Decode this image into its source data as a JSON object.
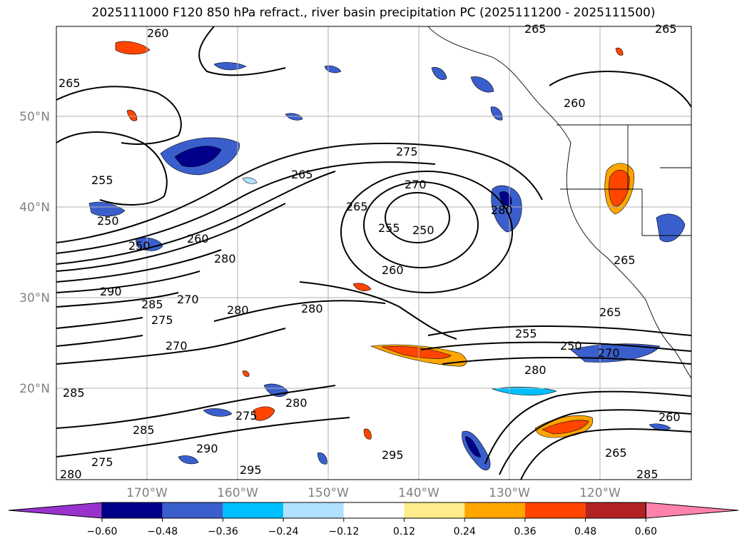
{
  "title": "2025111000 F120 850 hPa refract., river basin precipitation PC (2025111200 - 2025111500)",
  "lat_labels": [
    "50°N",
    "40°N",
    "30°N",
    "20°N"
  ],
  "lon_labels": [
    "170°W",
    "160°W",
    "150°W",
    "140°W",
    "130°W",
    "120°W"
  ],
  "contour_labels": [
    "260",
    "265",
    "265",
    "265",
    "255",
    "250",
    "250",
    "265",
    "275",
    "270",
    "265",
    "255",
    "250",
    "280",
    "260",
    "260",
    "280",
    "270",
    "260",
    "265",
    "290",
    "285",
    "275",
    "280",
    "280",
    "270",
    "265",
    "255",
    "250",
    "270",
    "285",
    "280",
    "280",
    "275",
    "285",
    "290",
    "295",
    "295",
    "275",
    "265",
    "260",
    "285",
    "280"
  ],
  "colorbar": {
    "ticks": [
      "−0.60",
      "−0.48",
      "−0.36",
      "−0.24",
      "−0.12",
      "0.12",
      "0.24",
      "0.36",
      "0.48",
      "0.60"
    ],
    "colors": [
      "#9932CC",
      "#00008B",
      "#3A5FCD",
      "#00BFFF",
      "#B0E2FF",
      "#FFFFFF",
      "#FFEC8B",
      "#FFA500",
      "#FF4500",
      "#B22222",
      "#FF82AB"
    ]
  }
}
